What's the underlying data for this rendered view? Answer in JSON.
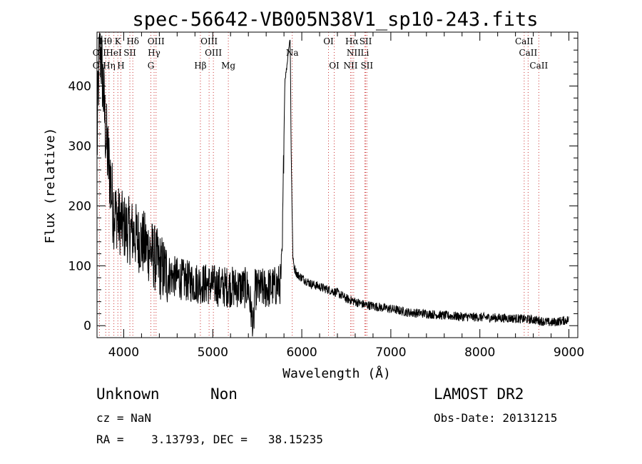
{
  "chart_data": {
    "type": "line",
    "title": "spec-56642-VB005N38V1_sp10-243.fits",
    "xlabel": "Wavelength (Å)",
    "ylabel": "Flux (relative)",
    "xlim": [
      3700,
      9100
    ],
    "ylim": [
      -20,
      490
    ],
    "xticks": [
      4000,
      5000,
      6000,
      7000,
      8000,
      9000
    ],
    "yticks": [
      0,
      100,
      200,
      300,
      400
    ],
    "grid": false,
    "spectrum_control_points": [
      [
        3700,
        290
      ],
      [
        3715,
        400
      ],
      [
        3730,
        470
      ],
      [
        3745,
        450
      ],
      [
        3760,
        420
      ],
      [
        3775,
        380
      ],
      [
        3790,
        340
      ],
      [
        3810,
        300
      ],
      [
        3830,
        270
      ],
      [
        3850,
        250
      ],
      [
        3870,
        210
      ],
      [
        3900,
        190
      ],
      [
        3950,
        175
      ],
      [
        4000,
        165
      ],
      [
        4100,
        155
      ],
      [
        4200,
        140
      ],
      [
        4300,
        125
      ],
      [
        4400,
        100
      ],
      [
        4500,
        85
      ],
      [
        4600,
        80
      ],
      [
        4700,
        75
      ],
      [
        4800,
        72
      ],
      [
        4900,
        70
      ],
      [
        5000,
        68
      ],
      [
        5100,
        65
      ],
      [
        5200,
        65
      ],
      [
        5300,
        64
      ],
      [
        5400,
        62
      ],
      [
        5460,
        -10
      ],
      [
        5470,
        60
      ],
      [
        5600,
        62
      ],
      [
        5700,
        65
      ],
      [
        5760,
        70
      ],
      [
        5780,
        110
      ],
      [
        5800,
        320
      ],
      [
        5810,
        410
      ],
      [
        5830,
        430
      ],
      [
        5850,
        460
      ],
      [
        5870,
        480
      ],
      [
        5880,
        300
      ],
      [
        5900,
        110
      ],
      [
        5920,
        95
      ],
      [
        5950,
        85
      ],
      [
        6000,
        80
      ],
      [
        6100,
        70
      ],
      [
        6200,
        65
      ],
      [
        6300,
        60
      ],
      [
        6400,
        55
      ],
      [
        6500,
        45
      ],
      [
        6600,
        40
      ],
      [
        6700,
        35
      ],
      [
        6800,
        33
      ],
      [
        6900,
        30
      ],
      [
        7000,
        28
      ],
      [
        7200,
        22
      ],
      [
        7400,
        20
      ],
      [
        7600,
        17
      ],
      [
        7800,
        15
      ],
      [
        8000,
        14
      ],
      [
        8200,
        13
      ],
      [
        8400,
        12
      ],
      [
        8600,
        10
      ],
      [
        8800,
        5
      ],
      [
        9000,
        10
      ]
    ],
    "noise_amplitude": 22,
    "spectral_lines": [
      {
        "name": "Hθ",
        "wavelength": 3798,
        "row": 0
      },
      {
        "name": "K",
        "wavelength": 3934,
        "row": 0
      },
      {
        "name": "Hδ",
        "wavelength": 4102,
        "row": 0
      },
      {
        "name": "OIII",
        "wavelength": 4363,
        "row": 0
      },
      {
        "name": "OIII",
        "wavelength": 4959,
        "row": 0
      },
      {
        "name": "OI",
        "wavelength": 6300,
        "row": 0
      },
      {
        "name": "Hα",
        "wavelength": 6563,
        "row": 0
      },
      {
        "name": "SII",
        "wavelength": 6717,
        "row": 0
      },
      {
        "name": "CaII",
        "wavelength": 8498,
        "row": 0
      },
      {
        "name": "OII",
        "wavelength": 3727,
        "row": 1
      },
      {
        "name": "HeI",
        "wavelength": 3889,
        "row": 1
      },
      {
        "name": "SII",
        "wavelength": 4069,
        "row": 1
      },
      {
        "name": "Hγ",
        "wavelength": 4341,
        "row": 1
      },
      {
        "name": "OIII",
        "wavelength": 5007,
        "row": 1
      },
      {
        "name": "Na",
        "wavelength": 5893,
        "row": 1
      },
      {
        "name": "NII",
        "wavelength": 6583,
        "row": 1
      },
      {
        "name": "Li",
        "wavelength": 6708,
        "row": 1
      },
      {
        "name": "CaII",
        "wavelength": 8542,
        "row": 1
      },
      {
        "name": "OII",
        "wavelength": 3727,
        "row": 2
      },
      {
        "name": "Hη",
        "wavelength": 3835,
        "row": 2
      },
      {
        "name": "H",
        "wavelength": 3968,
        "row": 2
      },
      {
        "name": "G",
        "wavelength": 4305,
        "row": 2
      },
      {
        "name": "Hβ",
        "wavelength": 4861,
        "row": 2
      },
      {
        "name": "Mg",
        "wavelength": 5175,
        "row": 2
      },
      {
        "name": "OI",
        "wavelength": 6364,
        "row": 2
      },
      {
        "name": "NII",
        "wavelength": 6548,
        "row": 2
      },
      {
        "name": "SII",
        "wavelength": 6731,
        "row": 2
      },
      {
        "name": "CaII",
        "wavelength": 8662,
        "row": 2
      }
    ],
    "line_color": "#000000",
    "marker_color": "#cc3333"
  },
  "info": {
    "class": "Unknown",
    "subclass": "Non",
    "cz": "cz = NaN",
    "coords": "RA =    3.13793, DEC =   38.15235",
    "survey": "LAMOST DR2",
    "obs_date": "Obs-Date: 20131215"
  }
}
